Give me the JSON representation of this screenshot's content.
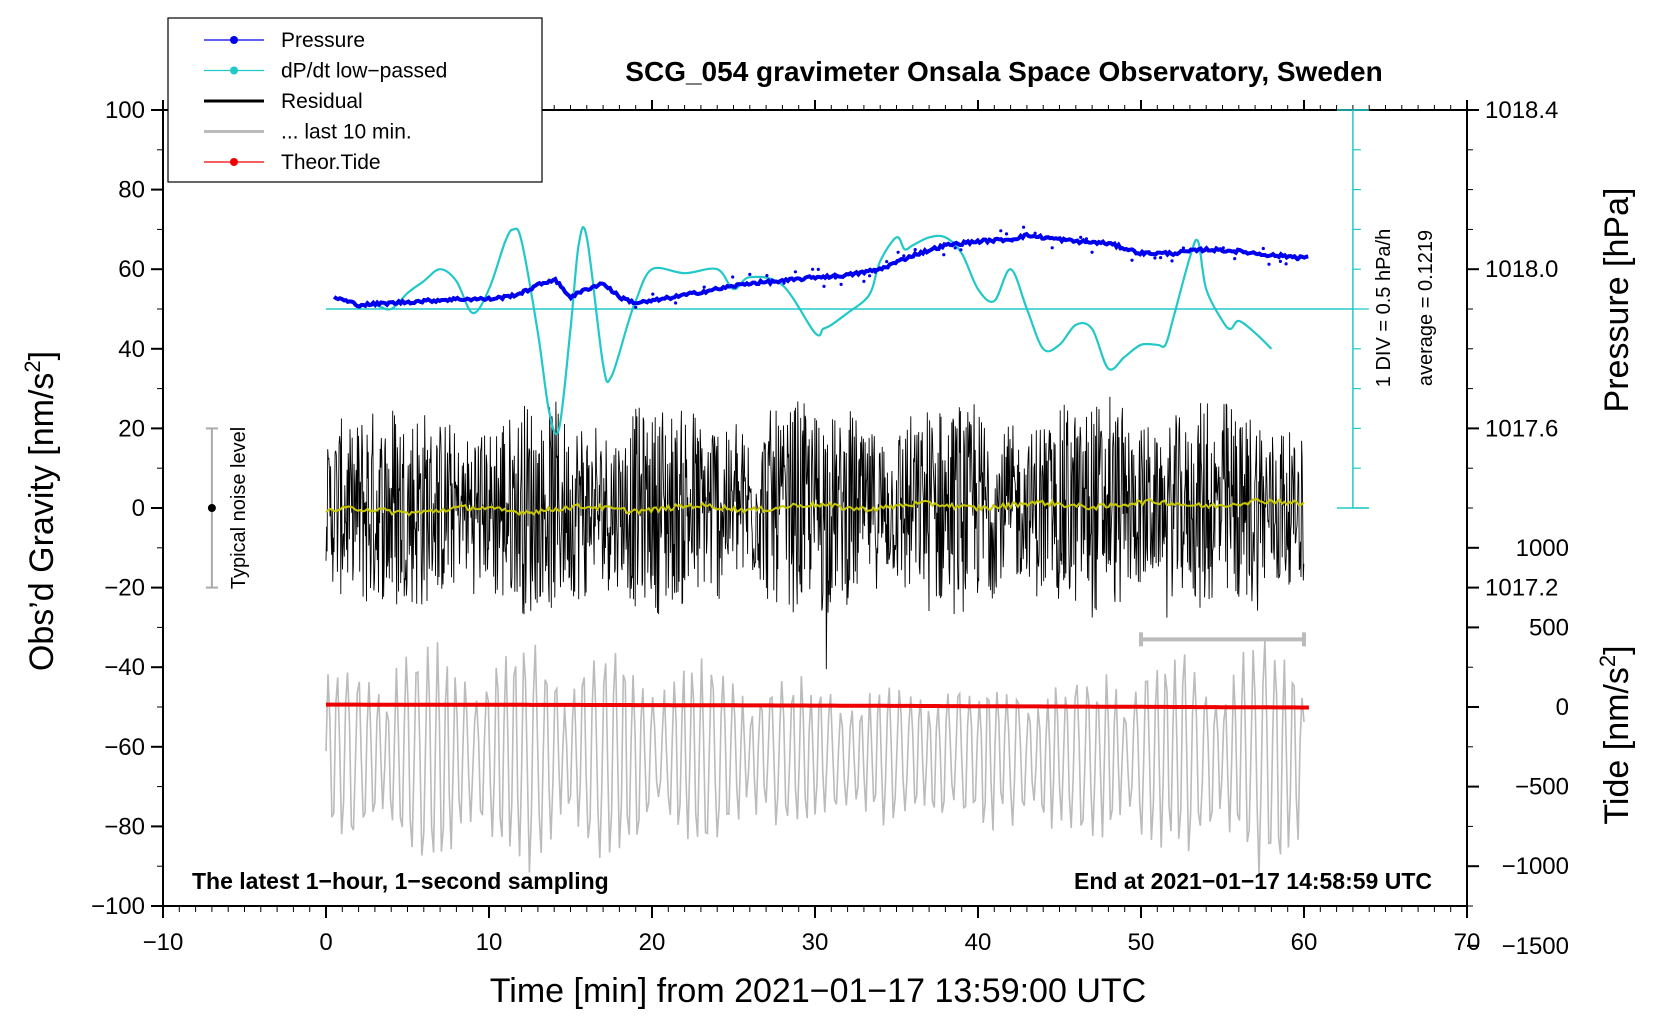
{
  "chart_data": {
    "type": "line",
    "title": "SCG_054 gravimeter Onsala Space Observatory, Sweden",
    "xlabel": "Time [min] from 2021−01−17 13:59:00 UTC",
    "ylabel_left": "Obs’d Gravity [nm/s",
    "ylabel_left_sup": "2",
    "ylabel_left_end": "]",
    "ylabel_right_pressure": "Pressure [hPa]",
    "ylabel_right_tide": "Tide [nm/s",
    "ylabel_right_tide_sup": "2",
    "ylabel_right_tide_end": "]",
    "xlim": [
      -10,
      70
    ],
    "ylim_left": [
      -100,
      100
    ],
    "x_ticks": [
      "−10",
      "0",
      "10",
      "20",
      "30",
      "40",
      "50",
      "60",
      "70"
    ],
    "y_left_ticks": [
      "100",
      "80",
      "60",
      "40",
      "20",
      "0",
      "−20",
      "−40",
      "−60",
      "−80",
      "−100"
    ],
    "pressure_axis": {
      "ticks": [
        "1018.4",
        "1018.0",
        "1017.6",
        "1017.2"
      ],
      "values": [
        1018.4,
        1018.0,
        1017.6,
        1017.2
      ],
      "value_at_gravity_60": 1018.0,
      "hPa_per_20nm": 0.2
    },
    "tide_axis": {
      "ticks": [
        "1000",
        "500",
        "0",
        "−500",
        "−1000",
        "−1500"
      ],
      "values": [
        1000,
        500,
        0,
        -500,
        -1000,
        -1500
      ],
      "zero_at_gravity": -50,
      "nm_per_gravity_unit": 25
    },
    "legend": [
      {
        "label": "Pressure",
        "color": "#0000ee",
        "marker": "dot"
      },
      {
        "label": "dP/dt low−passed",
        "color": "#22c8c8",
        "marker": "dot"
      },
      {
        "label": "Residual",
        "color": "#000000",
        "marker": "none"
      },
      {
        "label": "... last 10 min.",
        "color": "#bbbbbb",
        "marker": "none"
      },
      {
        "label": "Theor.Tide",
        "color": "#ee0000",
        "marker": "dot"
      }
    ],
    "annotations": {
      "noise_level": "Typical noise level",
      "noise_range": [
        -20,
        20
      ],
      "noise_x": -7,
      "dpdt_scale": "1 DIV = 0.5 hPa/h",
      "dpdt_average": "average = 0.1219",
      "dpdt_baseline_gravity": 50,
      "bottom_left": "The latest 1−hour, 1−second sampling",
      "bottom_right": "End at 2021−01−17 14:58:59 UTC",
      "last10_marker_x": [
        50,
        60
      ],
      "last10_marker_y": -33
    },
    "series": [
      {
        "name": "Pressure",
        "unit": "hPa",
        "x": [
          0.5,
          2,
          4,
          6,
          8,
          10,
          11,
          12,
          13,
          14,
          15,
          16,
          17,
          18,
          19,
          20,
          22,
          24,
          26,
          28,
          30,
          32,
          34,
          36,
          38,
          40,
          42,
          43,
          44,
          46,
          48,
          50,
          52,
          54,
          56,
          58,
          60
        ],
        "values": [
          1017.93,
          1017.91,
          1017.915,
          1017.92,
          1017.925,
          1017.925,
          1017.93,
          1017.94,
          1017.96,
          1017.975,
          1017.93,
          1017.95,
          1017.965,
          1017.93,
          1017.915,
          1017.92,
          1017.935,
          1017.95,
          1017.965,
          1017.97,
          1017.98,
          1017.985,
          1018.0,
          1018.035,
          1018.06,
          1018.07,
          1018.075,
          1018.085,
          1018.08,
          1018.07,
          1018.065,
          1018.04,
          1018.04,
          1018.05,
          1018.045,
          1018.035,
          1018.03
        ]
      },
      {
        "name": "dP/dt low−passed",
        "unit": "gravity-axis",
        "x": [
          2,
          3,
          4,
          5,
          6,
          7,
          8,
          9,
          10,
          11,
          11.5,
          12,
          13,
          13.7,
          14.3,
          15,
          15.5,
          16,
          17,
          17.5,
          18.5,
          19,
          20,
          22,
          24,
          25,
          26,
          28,
          30,
          30.5,
          31,
          32,
          33,
          33.5,
          34,
          35,
          35.5,
          36,
          37,
          38,
          39,
          40,
          41,
          42,
          43,
          44,
          45,
          46,
          47,
          48,
          49,
          50,
          51,
          51.5,
          52,
          53,
          53.5,
          54,
          55,
          55.5,
          56,
          57,
          58
        ],
        "values": [
          51,
          51,
          50,
          54,
          57,
          60,
          57,
          49,
          55,
          67,
          70,
          67,
          44,
          24,
          20,
          45,
          66,
          68,
          36,
          33,
          46,
          52,
          60,
          59,
          60,
          55,
          58,
          56,
          44,
          45,
          46,
          49,
          52,
          55,
          62,
          68,
          65,
          66,
          68,
          68,
          64,
          55,
          52,
          60,
          50,
          40,
          41,
          46,
          45,
          35,
          38,
          41,
          41,
          41,
          48,
          63,
          67,
          55,
          47,
          45,
          47,
          44,
          40
        ]
      },
      {
        "name": "Theor.Tide",
        "unit": "nm/s2",
        "x": [
          0,
          10,
          20,
          30,
          40,
          50,
          60
        ],
        "values": [
          15,
          14,
          12,
          9,
          5,
          1,
          -3
        ]
      },
      {
        "name": "Residual",
        "description_note": "1-second residual, ~±30 nm/s2 noise band (synthesised)"
      },
      {
        "name": "... last 10 min.",
        "description_note": "last 10 min residual, magnified (synthesised)"
      }
    ]
  }
}
